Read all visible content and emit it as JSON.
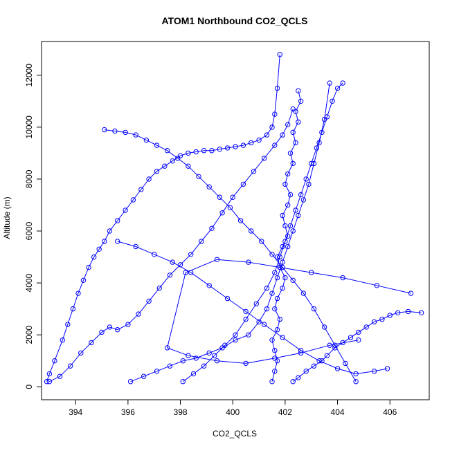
{
  "chart_data": {
    "type": "line",
    "title": "ATOM1 Northbound CO2_QCLS",
    "xlabel": "CO2_QCLS",
    "ylabel": "Altitude (m)",
    "xlim": [
      392.7,
      407.5
    ],
    "ylim": [
      -500,
      13300
    ],
    "xticks": [
      394,
      396,
      398,
      400,
      402,
      404,
      406
    ],
    "yticks": [
      0,
      2000,
      4000,
      6000,
      8000,
      10000,
      12000
    ],
    "grid": false,
    "legend": "none",
    "markers": "open-circle",
    "color": "#0000ff",
    "series": [
      {
        "x": [
          402.3,
          402.5,
          402.8,
          403.1,
          403.4,
          403.6,
          403.9,
          404.2,
          404.5,
          404.8,
          405.1,
          405.4,
          405.7,
          406.0,
          406.3,
          406.7,
          407.2
        ],
        "y": [
          200,
          350,
          600,
          800,
          1000,
          1200,
          1500,
          1700,
          1900,
          2100,
          2300,
          2500,
          2600,
          2750,
          2850,
          2900,
          2850
        ]
      },
      {
        "x": [
          392.9,
          393.0,
          393.2,
          393.5,
          393.7,
          393.9,
          394.1,
          394.3,
          394.5,
          394.7,
          394.9,
          395.1,
          395.3,
          395.6,
          395.9,
          396.2,
          396.5,
          396.8,
          397.1,
          397.4,
          397.7,
          398.0,
          398.3,
          398.6,
          398.9,
          399.2,
          399.5,
          399.8,
          400.1,
          400.4,
          400.7,
          401.0,
          401.3,
          401.5,
          401.6,
          401.7,
          401.8
        ],
        "y": [
          200,
          500,
          1000,
          1800,
          2400,
          3000,
          3600,
          4100,
          4600,
          5000,
          5300,
          5600,
          6000,
          6400,
          6800,
          7200,
          7600,
          8000,
          8300,
          8500,
          8700,
          8900,
          9000,
          9050,
          9100,
          9100,
          9150,
          9200,
          9250,
          9300,
          9400,
          9500,
          9700,
          10000,
          10500,
          11500,
          12800
        ]
      },
      {
        "x": [
          393.0,
          393.4,
          393.8,
          394.2,
          394.6,
          395.0,
          395.3,
          395.6,
          396.0,
          396.4,
          396.8,
          397.2,
          397.6,
          398.0,
          398.4,
          398.8,
          399.2,
          399.6,
          400.0,
          400.4,
          400.8,
          401.2,
          401.6,
          401.9,
          402.1,
          402.3
        ],
        "y": [
          200,
          400,
          800,
          1300,
          1700,
          2100,
          2300,
          2200,
          2400,
          2800,
          3300,
          3800,
          4300,
          4700,
          5100,
          5600,
          6100,
          6700,
          7300,
          7800,
          8300,
          8800,
          9300,
          9700,
          10100,
          10700
        ]
      },
      {
        "x": [
          396.1,
          396.6,
          397.1,
          397.6,
          398.1,
          398.6,
          399.1,
          399.6,
          400.1,
          400.6,
          401.0,
          401.3,
          401.5,
          401.7,
          401.9,
          402.1,
          402.3,
          402.5,
          402.7,
          402.9,
          403.1,
          403.3,
          403.5,
          403.7
        ],
        "y": [
          200,
          400,
          600,
          800,
          1000,
          1100,
          1300,
          1500,
          1800,
          2000,
          2500,
          3000,
          3600,
          4200,
          4800,
          5400,
          6000,
          6600,
          7200,
          7800,
          8600,
          9400,
          10300,
          11700
        ]
      },
      {
        "x": [
          398.1,
          398.5,
          398.9,
          399.3,
          399.7,
          400.1,
          400.5,
          400.9,
          401.3,
          401.6,
          401.8,
          402.0,
          402.2,
          402.4,
          402.6,
          402.8,
          403.0,
          403.2,
          403.4,
          403.6,
          403.8,
          404.0,
          404.2
        ],
        "y": [
          200,
          500,
          800,
          1200,
          1600,
          2000,
          2600,
          3200,
          3800,
          4400,
          5000,
          5600,
          6200,
          6800,
          7400,
          8000,
          8600,
          9200,
          9800,
          10400,
          11000,
          11500,
          11700
        ]
      },
      {
        "x": [
          404.7,
          404.3,
          403.9,
          403.5,
          403.1,
          402.7,
          402.3,
          401.9,
          401.5,
          401.1,
          400.7,
          400.3,
          399.9,
          399.5,
          399.1,
          398.7,
          398.3,
          397.9,
          397.5,
          397.1,
          396.7,
          396.3,
          395.9,
          395.5,
          395.1
        ],
        "y": [
          200,
          900,
          1600,
          2300,
          3000,
          3600,
          4100,
          4600,
          5100,
          5600,
          6000,
          6400,
          6900,
          7300,
          7700,
          8100,
          8500,
          8800,
          9100,
          9300,
          9500,
          9700,
          9800,
          9850,
          9900
        ]
      },
      {
        "x": [
          401.5,
          401.6,
          401.7,
          401.6,
          401.5,
          401.7,
          401.8,
          401.6,
          401.7,
          401.9,
          402.0,
          401.8,
          401.7,
          401.9,
          402.1,
          402.0,
          401.9,
          402.1,
          402.2,
          402.0,
          402.1,
          402.3,
          402.2,
          402.4,
          402.3,
          402.5,
          402.4,
          402.6,
          402.5
        ],
        "y": [
          200,
          600,
          1000,
          1400,
          1800,
          2200,
          2600,
          3000,
          3400,
          3800,
          4200,
          4600,
          5000,
          5400,
          5800,
          6200,
          6600,
          7000,
          7400,
          7800,
          8200,
          8600,
          9000,
          9400,
          9800,
          10200,
          10600,
          11000,
          11400
        ]
      },
      {
        "x": [
          406.8,
          405.5,
          404.2,
          403.0,
          401.8,
          400.6,
          399.4,
          398.2,
          397.5,
          398.3,
          399.4,
          400.5,
          401.6,
          402.6,
          403.7,
          404.8
        ],
        "y": [
          3600,
          3900,
          4200,
          4400,
          4600,
          4800,
          4900,
          4400,
          1500,
          1200,
          1000,
          900,
          1100,
          1300,
          1600,
          1800
        ]
      },
      {
        "x": [
          395.6,
          396.3,
          397.0,
          397.7,
          398.4,
          399.1,
          399.8,
          400.5,
          401.2,
          401.9,
          402.6,
          403.3,
          404.0,
          404.7,
          405.4,
          405.9
        ],
        "y": [
          5600,
          5400,
          5100,
          4800,
          4400,
          3900,
          3400,
          2900,
          2400,
          1900,
          1400,
          1000,
          700,
          500,
          600,
          700
        ]
      }
    ]
  }
}
